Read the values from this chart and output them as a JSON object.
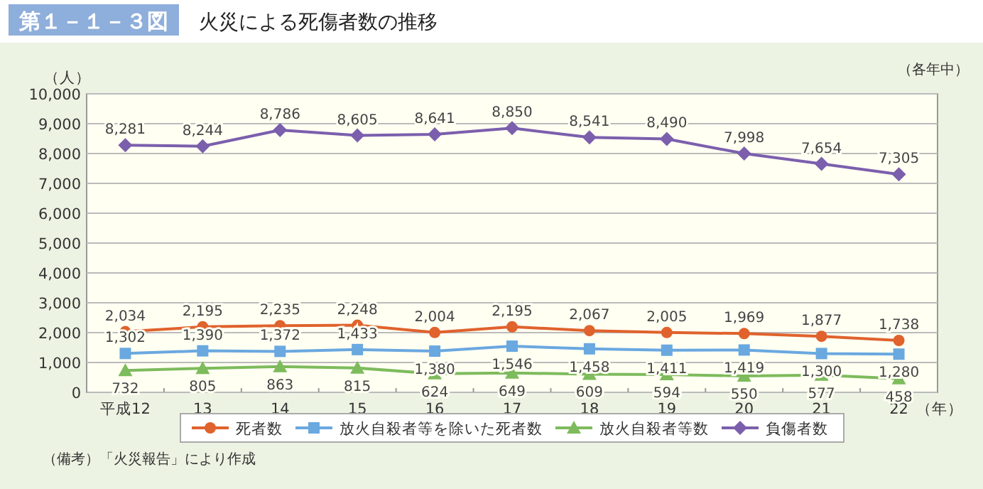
{
  "chart_data": {
    "type": "line",
    "title": "火災による死傷者数の推移",
    "subtitle": "（各年中）",
    "ylabel": "（人）",
    "xlabel": "（年）",
    "annotations": [
      "第１－１－３図",
      "（備考）「火災報告」により作成"
    ],
    "categories": [
      "平成12",
      "13",
      "14",
      "15",
      "16",
      "17",
      "18",
      "19",
      "20",
      "21",
      "22"
    ],
    "series": [
      {
        "name": "死者数",
        "color": "#e0622c",
        "marker": "circle",
        "values": [
          2034,
          2195,
          2235,
          2248,
          2004,
          2195,
          2067,
          2005,
          1969,
          1877,
          1738
        ],
        "value_labels": [
          "2,034",
          "2,195",
          "2,235",
          "2,248",
          "2,004",
          "2,195",
          "2,067",
          "2,005",
          "1,969",
          "1,877",
          "1,738"
        ]
      },
      {
        "name": "放火自殺者等を除いた死者数",
        "color": "#6aa8e0",
        "marker": "square",
        "values": [
          1302,
          1390,
          1372,
          1433,
          1380,
          1546,
          1458,
          1411,
          1419,
          1300,
          1280
        ],
        "value_labels": [
          "1,302",
          "1,390",
          "1,372",
          "1,433",
          "1,380",
          "1,546",
          "1,458",
          "1,411",
          "1,419",
          "1,300",
          "1,280"
        ]
      },
      {
        "name": "放火自殺者等数",
        "color": "#7dbb5c",
        "marker": "triangle",
        "values": [
          732,
          805,
          863,
          815,
          624,
          649,
          609,
          594,
          550,
          577,
          458
        ],
        "value_labels": [
          "732",
          "805",
          "863",
          "815",
          "624",
          "649",
          "609",
          "594",
          "550",
          "577",
          "458"
        ]
      },
      {
        "name": "負傷者数",
        "color": "#7b5fad",
        "marker": "diamond",
        "values": [
          8281,
          8244,
          8786,
          8605,
          8641,
          8850,
          8541,
          8490,
          7998,
          7654,
          7305
        ],
        "value_labels": [
          "8,281",
          "8,244",
          "8,786",
          "8,605",
          "8,641",
          "8,850",
          "8,541",
          "8,490",
          "7,998",
          "7,654",
          "7,305"
        ]
      }
    ],
    "ylim": [
      0,
      10000
    ],
    "yticks": [
      {
        "value": 0,
        "label": "0"
      },
      {
        "value": 1000,
        "label": "1,000"
      },
      {
        "value": 2000,
        "label": "2,000"
      },
      {
        "value": 3000,
        "label": "3,000"
      },
      {
        "value": 4000,
        "label": "4,000"
      },
      {
        "value": 5000,
        "label": "5,000"
      },
      {
        "value": 6000,
        "label": "6,000"
      },
      {
        "value": 7000,
        "label": "7,000"
      },
      {
        "value": 8000,
        "label": "8,000"
      },
      {
        "value": 9000,
        "label": "9,000"
      },
      {
        "value": 10000,
        "label": "10,000"
      }
    ],
    "grid": "y",
    "legend": "bottom"
  }
}
